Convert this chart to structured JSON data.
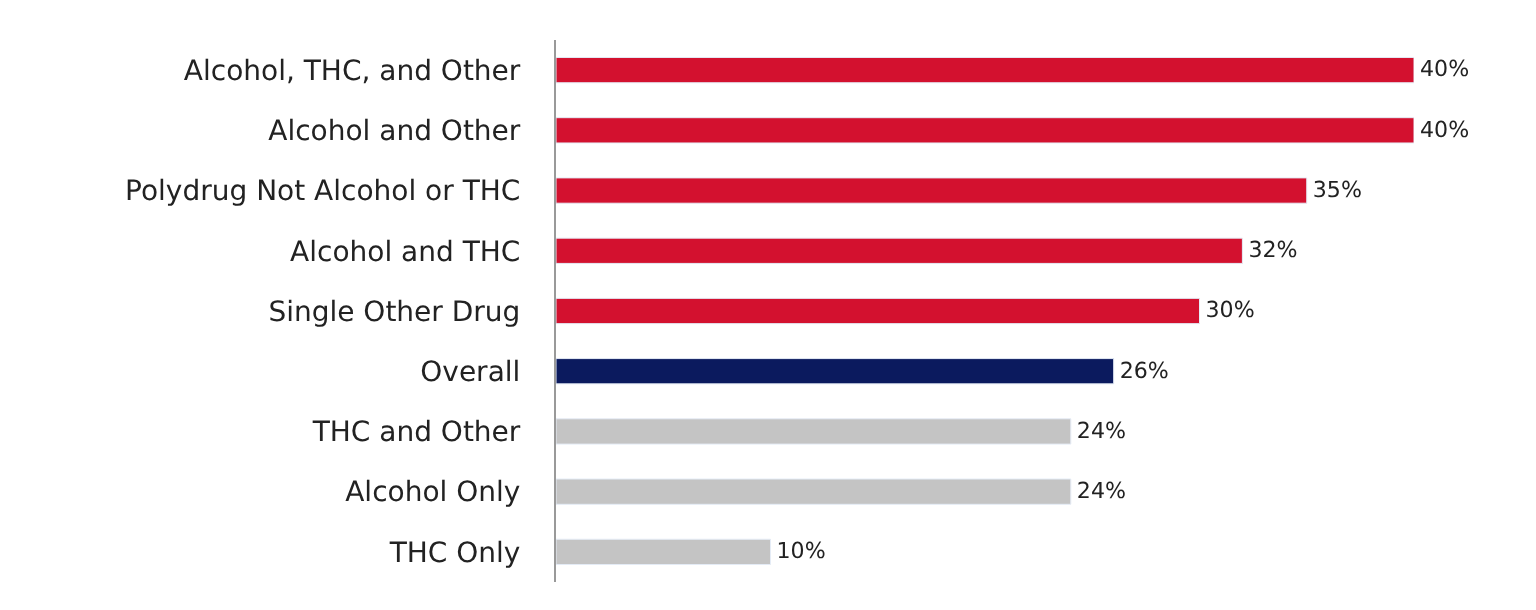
{
  "chart_data": {
    "type": "bar",
    "orientation": "horizontal",
    "categories": [
      "Alcohol, THC, and Other",
      "Alcohol and Other",
      "Polydrug Not Alcohol or THC",
      "Alcohol and THC",
      "Single Other Drug",
      "Overall",
      "THC and Other",
      "Alcohol Only",
      "THC Only"
    ],
    "values": [
      40,
      40,
      35,
      32,
      30,
      26,
      24,
      24,
      10
    ],
    "value_labels": [
      "40%",
      "40%",
      "35%",
      "32%",
      "30%",
      "26%",
      "24%",
      "24%",
      "10%"
    ],
    "colors": [
      "#d3112f",
      "#d3112f",
      "#d3112f",
      "#d3112f",
      "#d3112f",
      "#0b1a5e",
      "#c4c4c4",
      "#c4c4c4",
      "#c4c4c4"
    ],
    "tick_labels": "y"
  }
}
